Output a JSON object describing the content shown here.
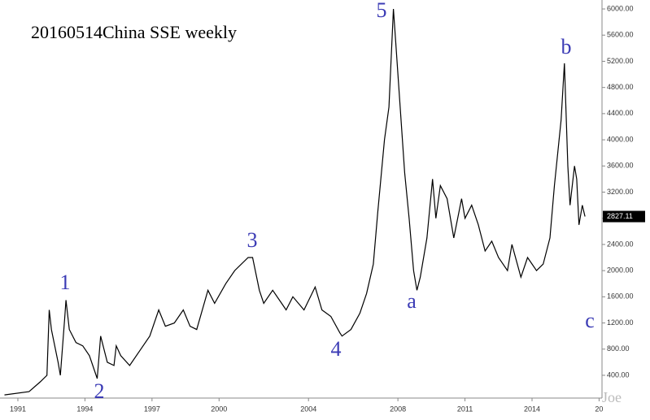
{
  "chart_data": {
    "type": "line",
    "title": "20160514China SSE weekly",
    "annotations": [
      "1",
      "2",
      "3",
      "4",
      "5",
      "a",
      "b",
      "c"
    ],
    "watermark": "Joe",
    "series": [
      {
        "color": "#000000",
        "x": [
          1990.4,
          1991.5,
          1992.0,
          1992.3,
          1992.4,
          1992.5,
          1992.8,
          1992.9,
          1993.1,
          1993.15,
          1993.3,
          1993.6,
          1993.9,
          1994.2,
          1994.55,
          1994.7,
          1995.0,
          1995.3,
          1995.4,
          1995.6,
          1996.0,
          1996.5,
          1996.9,
          1997.3,
          1997.6,
          1998.0,
          1998.4,
          1998.7,
          1999.0,
          1999.5,
          1999.8,
          2000.3,
          2000.7,
          2001.3,
          2001.5,
          2001.8,
          2002.0,
          2002.4,
          2002.8,
          2003.0,
          2003.3,
          2003.8,
          2004.3,
          2004.6,
          2005.0,
          2005.4,
          2005.5,
          2005.9,
          2006.3,
          2006.6,
          2006.9,
          2007.1,
          2007.4,
          2007.6,
          2007.8,
          2007.9,
          2008.1,
          2008.3,
          2008.5,
          2008.7,
          2008.85,
          2009.0,
          2009.3,
          2009.55,
          2009.7,
          2009.9,
          2010.2,
          2010.5,
          2010.85,
          2011.0,
          2011.3,
          2011.6,
          2011.9,
          2012.2,
          2012.5,
          2012.9,
          2013.1,
          2013.5,
          2013.8,
          2014.2,
          2014.5,
          2014.8,
          2015.0,
          2015.3,
          2015.45,
          2015.6,
          2015.7,
          2015.9,
          2016.0,
          2016.1,
          2016.25,
          2016.37
        ],
        "values": [
          100,
          150,
          300,
          400,
          1400,
          1100,
          600,
          400,
          1300,
          1550,
          1100,
          900,
          850,
          700,
          350,
          1000,
          600,
          550,
          850,
          700,
          550,
          800,
          1000,
          1400,
          1150,
          1200,
          1400,
          1150,
          1100,
          1700,
          1500,
          1800,
          2000,
          2200,
          2200,
          1700,
          1500,
          1700,
          1500,
          1400,
          1600,
          1400,
          1750,
          1400,
          1300,
          1050,
          1000,
          1100,
          1350,
          1650,
          2100,
          2900,
          4000,
          4500,
          6000,
          5500,
          4500,
          3500,
          2800,
          2000,
          1700,
          1900,
          2500,
          3400,
          2800,
          3300,
          3100,
          2500,
          3100,
          2800,
          3000,
          2700,
          2300,
          2450,
          2200,
          2000,
          2400,
          1900,
          2200,
          2000,
          2100,
          2500,
          3300,
          4300,
          5170,
          3600,
          3000,
          3600,
          3400,
          2700,
          3000,
          2827.11
        ]
      }
    ],
    "xlim": [
      1990.2,
      2017.13
    ],
    "xticks": [
      1991,
      1994,
      1997,
      2000,
      2004,
      2008,
      2011,
      2014,
      {
        "value": 2017,
        "label": "20"
      }
    ],
    "ylim": [
      52,
      6137
    ],
    "yticks": [
      {
        "value": 400,
        "label": "400.00"
      },
      {
        "value": 800,
        "label": "800.00"
      },
      {
        "value": 1200,
        "label": "1200.00"
      },
      {
        "value": 1600,
        "label": "1600.00"
      },
      {
        "value": 2000,
        "label": "2000.00"
      },
      {
        "value": 2400,
        "label": "2400.00"
      },
      {
        "value": 2800,
        "label": "2800.00"
      },
      {
        "value": 3200,
        "label": "3200.00"
      },
      {
        "value": 3600,
        "label": "3600.00"
      },
      {
        "value": 4000,
        "label": "4000.00"
      },
      {
        "value": 4400,
        "label": "4400.00"
      },
      {
        "value": 4800,
        "label": "4800.00"
      },
      {
        "value": 5200,
        "label": "5200.00"
      },
      {
        "value": 5600,
        "label": "5600.00"
      },
      {
        "value": 6000,
        "label": "6000.00"
      }
    ]
  }
}
